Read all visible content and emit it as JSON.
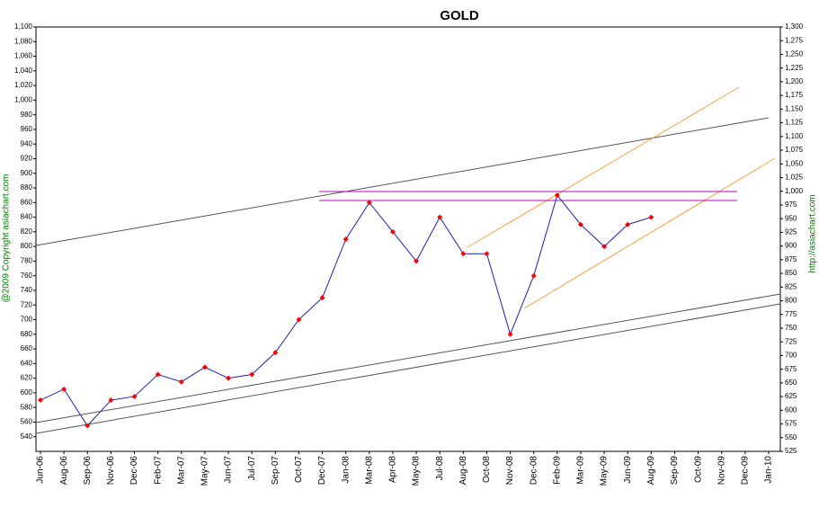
{
  "chart_data": {
    "type": "line",
    "title": "GOLD",
    "side_texts": [
      "@2009 Copyright asiachart.com",
      "http://asiachart.com"
    ],
    "categories": [
      "Jun-06",
      "Aug-06",
      "Sep-06",
      "Nov-06",
      "Dec-06",
      "Feb-07",
      "Mar-07",
      "May-07",
      "Jun-07",
      "Jul-07",
      "Sep-07",
      "Oct-07",
      "Dec-07",
      "Jan-08",
      "Mar-08",
      "Apr-08",
      "May-08",
      "Jul-08",
      "Aug-08",
      "Oct-08",
      "Nov-08",
      "Dec-08",
      "Feb-09",
      "Mar-09",
      "May-09",
      "Jun-09",
      "Aug-09",
      "Sep-09",
      "Oct-09",
      "Nov-09",
      "Dec-09",
      "Jan-10"
    ],
    "series": [
      {
        "name": "Gold",
        "color": "#1f1fb4",
        "marker_color": "#ff0000",
        "values": [
          590,
          605,
          555,
          590,
          595,
          625,
          615,
          635,
          620,
          625,
          655,
          700,
          730,
          810,
          860,
          820,
          780,
          840,
          790,
          790,
          680,
          760,
          870,
          830,
          800,
          830,
          840,
          null,
          null,
          null,
          null,
          null
        ]
      }
    ],
    "ylim": [
      520,
      1100
    ],
    "yticks": [
      540,
      560,
      580,
      600,
      620,
      640,
      660,
      680,
      700,
      720,
      740,
      760,
      780,
      800,
      820,
      840,
      860,
      880,
      900,
      920,
      940,
      960,
      980,
      {
        "value": 1000,
        "label": "1,000"
      },
      {
        "value": 1020,
        "label": "1,020"
      },
      {
        "value": 1040,
        "label": "1,040"
      },
      {
        "value": 1060,
        "label": "1,060"
      },
      {
        "value": 1080,
        "label": "1,080"
      },
      {
        "value": 1100,
        "label": "1,100"
      }
    ],
    "y2lim": [
      525,
      1300
    ],
    "y2ticks": [
      525,
      550,
      575,
      600,
      625,
      650,
      675,
      700,
      725,
      750,
      775,
      800,
      825,
      850,
      875,
      900,
      925,
      950,
      975,
      {
        "value": 1000,
        "label": "1,000"
      },
      {
        "value": 1025,
        "label": "1,025"
      },
      {
        "value": 1050,
        "label": "1,050"
      },
      {
        "value": 1075,
        "label": "1,075"
      },
      {
        "value": 1100,
        "label": "1,100"
      },
      {
        "value": 1125,
        "label": "1,125"
      },
      {
        "value": 1150,
        "label": "1,150"
      },
      {
        "value": 1175,
        "label": "1,175"
      },
      {
        "value": 1200,
        "label": "1,200"
      },
      {
        "value": 1225,
        "label": "1,225"
      },
      {
        "value": 1250,
        "label": "1,250"
      },
      {
        "value": 1275,
        "label": "1,275"
      },
      {
        "value": 1300,
        "label": "1,300"
      }
    ]
  }
}
